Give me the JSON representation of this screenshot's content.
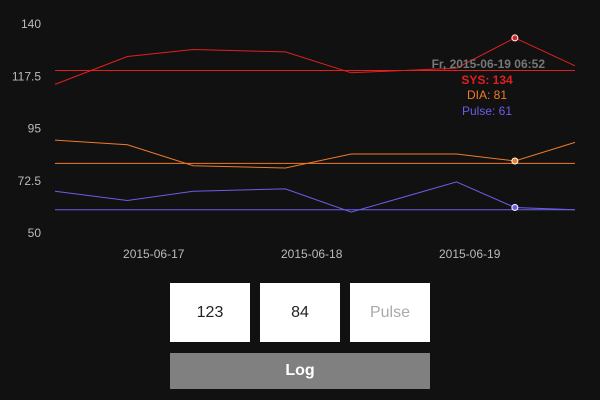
{
  "chart_data": {
    "type": "line",
    "x": [
      "2015-06-16 09:00",
      "2015-06-16 20:00",
      "2015-06-17 06:00",
      "2015-06-17 20:00",
      "2015-06-18 06:00",
      "2015-06-18 22:00",
      "2015-06-19 06:52",
      "2015-06-19 16:00"
    ],
    "x_ticks": [
      "2015-06-17",
      "2015-06-18",
      "2015-06-19"
    ],
    "y_ticks": [
      "50",
      "72.5",
      "95",
      "117.5",
      "140"
    ],
    "ylim": [
      50,
      140
    ],
    "series": [
      {
        "key": "sys",
        "values": [
          114,
          126,
          129,
          128,
          119,
          121,
          134,
          122
        ],
        "reference": 120,
        "color": "#e0201f"
      },
      {
        "key": "dia",
        "values": [
          90,
          88,
          79,
          78,
          84,
          84,
          81,
          89
        ],
        "reference": 80,
        "color": "#f07a2a"
      },
      {
        "key": "pulse",
        "values": [
          68,
          64,
          68,
          69,
          59,
          72,
          61,
          60
        ],
        "reference": 60,
        "color": "#6a5ee8"
      }
    ],
    "highlight_index": 6,
    "tooltip": {
      "title": "Fr, 2015-06-19 06:52",
      "sys": "SYS: 134",
      "dia": "DIA: 81",
      "pulse": "Pulse: 61"
    },
    "grid": false
  },
  "form": {
    "sys_value": "123",
    "dia_value": "84",
    "pulse_placeholder": "Pulse",
    "log_label": "Log"
  },
  "colors": {
    "background": "#111111",
    "axis_text": "#bbbbbb",
    "tooltip_title": "#777777",
    "button": "#808080"
  }
}
